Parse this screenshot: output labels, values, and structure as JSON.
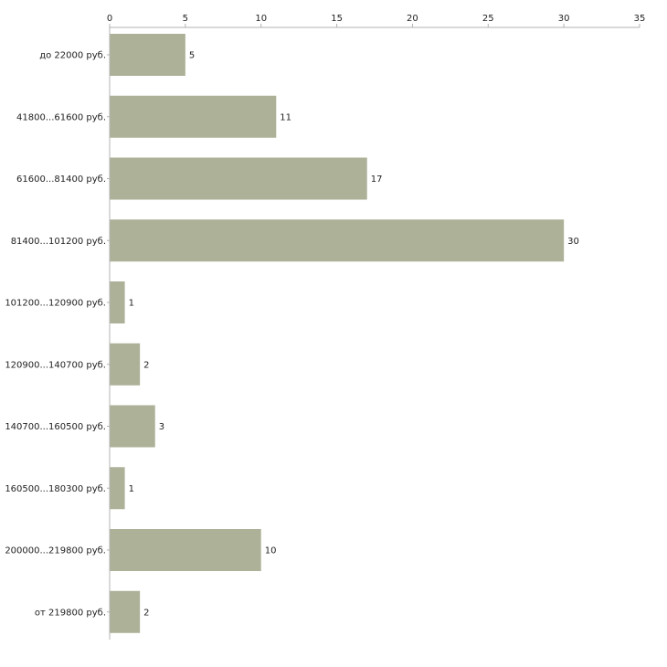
{
  "chart_data": {
    "type": "bar",
    "orientation": "horizontal",
    "title": "",
    "xlabel": "",
    "ylabel": "",
    "xlim": [
      0,
      35
    ],
    "x_ticks": [
      0,
      5,
      10,
      15,
      20,
      25,
      30,
      35
    ],
    "categories": [
      "до 22000 руб.",
      "41800...61600 руб.",
      "61600...81400 руб.",
      "81400...101200 руб.",
      "101200...120900 руб.",
      "120900...140700 руб.",
      "140700...160500 руб.",
      "160500...180300 руб.",
      "200000...219800 руб.",
      "от 219800 руб."
    ],
    "values": [
      5,
      11,
      17,
      30,
      1,
      2,
      3,
      1,
      10,
      2
    ],
    "bar_color": "#acb197",
    "axis_color": "#b3b3b3",
    "text_color": "#222222",
    "grid": false,
    "legend": "none"
  }
}
